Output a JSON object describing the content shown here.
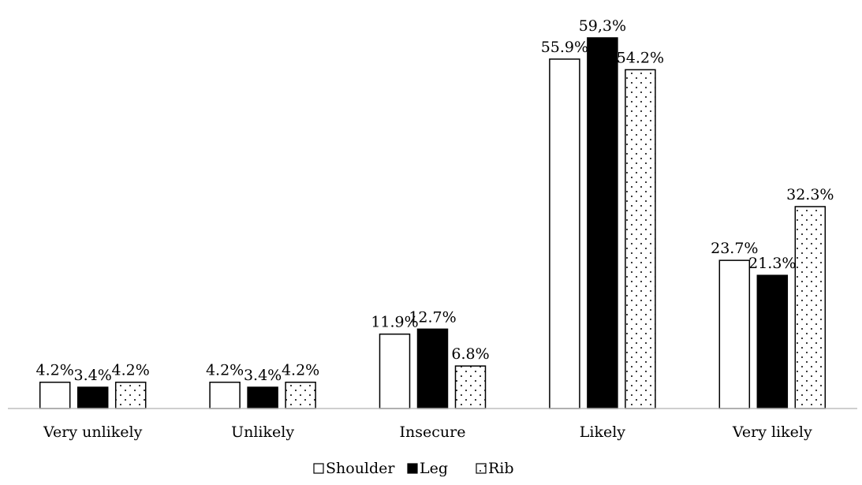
{
  "chart_data": {
    "type": "bar",
    "categories": [
      "Very unlikely",
      "Unlikely",
      "Insecure",
      "Likely",
      "Very likely"
    ],
    "series": [
      {
        "name": "Shoulder",
        "values": [
          4.2,
          4.2,
          11.9,
          55.9,
          23.7
        ],
        "labels": [
          "4.2%",
          "4.2%",
          "11.9%",
          "55.9%",
          "23.7%"
        ],
        "fill": "#ffffff"
      },
      {
        "name": "Leg",
        "values": [
          3.4,
          3.4,
          12.7,
          59.3,
          21.3
        ],
        "labels": [
          "3.4%",
          "3.4%",
          "12.7%",
          "59,3%",
          "21.3%"
        ],
        "fill": "#000000"
      },
      {
        "name": "Rib",
        "values": [
          4.2,
          4.2,
          6.8,
          54.2,
          32.3
        ],
        "labels": [
          "4.2%",
          "4.2%",
          "6.8%",
          "54.2%",
          "32.3%"
        ],
        "fill": "dotted"
      }
    ],
    "ylim": [
      0,
      60
    ],
    "grid": false,
    "legend_position": "bottom-center"
  }
}
